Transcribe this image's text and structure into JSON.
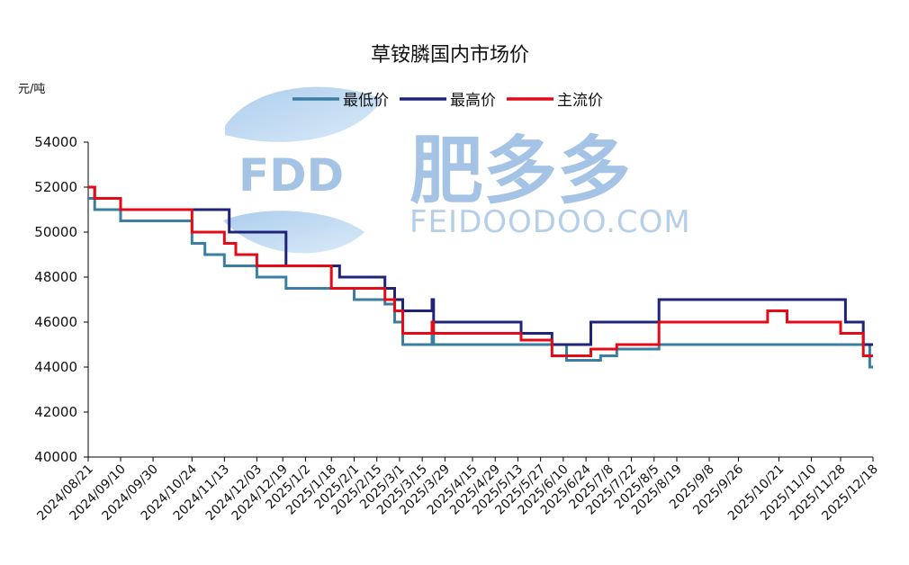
{
  "chart_data": {
    "type": "line",
    "title": "草铵膦国内市场价",
    "ylabel": "元/吨",
    "xlabel": "",
    "ylim": [
      40000,
      54000
    ],
    "yticks": [
      40000,
      42000,
      44000,
      46000,
      48000,
      50000,
      52000,
      54000
    ],
    "grid": false,
    "legend_position": "top",
    "x_dates": [
      "2024/08/21",
      "2024/09/10",
      "2024/09/30",
      "2024/10/24",
      "2024/11/13",
      "2024/12/03",
      "2024/12/19",
      "2025/1/2",
      "2025/1/18",
      "2025/2/1",
      "2025/2/15",
      "2025/3/1",
      "2025/3/15",
      "2025/3/29",
      "2025/4/15",
      "2025/4/29",
      "2025/5/13",
      "2025/5/27",
      "2025/6/10",
      "2025/6/24",
      "2025/7/8",
      "2025/7/22",
      "2025/8/5",
      "2025/8/19",
      "2025/9/8",
      "2025/9/26",
      "2025/10/21",
      "2025/11/10",
      "2025/11/28",
      "2025/12/18"
    ],
    "series": [
      {
        "name": "最低价",
        "color": "#3a7ea1",
        "points": [
          [
            "2024/08/21",
            51500
          ],
          [
            "2024/08/25",
            51000
          ],
          [
            "2024/09/10",
            50500
          ],
          [
            "2024/10/24",
            49500
          ],
          [
            "2024/11/01",
            49000
          ],
          [
            "2024/11/13",
            48500
          ],
          [
            "2024/12/03",
            48000
          ],
          [
            "2024/12/19",
            48000
          ],
          [
            "2024/12/21",
            47500
          ],
          [
            "2025/1/18",
            47500
          ],
          [
            "2025/2/1",
            47000
          ],
          [
            "2025/2/15",
            47000
          ],
          [
            "2025/2/20",
            46800
          ],
          [
            "2025/2/26",
            46000
          ],
          [
            "2025/3/3",
            45000
          ],
          [
            "2025/3/20",
            45000
          ],
          [
            "2025/3/21",
            45500
          ],
          [
            "2025/3/22",
            45000
          ],
          [
            "2025/6/12",
            44300
          ],
          [
            "2025/7/3",
            44500
          ],
          [
            "2025/7/13",
            44800
          ],
          [
            "2025/8/8",
            45000
          ],
          [
            "2025/12/12",
            45000
          ],
          [
            "2025/12/16",
            44000
          ],
          [
            "2025/12/18",
            44000
          ]
        ]
      },
      {
        "name": "最高价",
        "color": "#1f237a",
        "points": [
          [
            "2024/08/21",
            52000
          ],
          [
            "2024/08/25",
            51500
          ],
          [
            "2024/09/10",
            51000
          ],
          [
            "2024/11/13",
            51000
          ],
          [
            "2024/11/16",
            50000
          ],
          [
            "2024/12/19",
            50000
          ],
          [
            "2024/12/21",
            48500
          ],
          [
            "2025/1/18",
            48500
          ],
          [
            "2025/1/23",
            48000
          ],
          [
            "2025/2/15",
            48000
          ],
          [
            "2025/2/20",
            47500
          ],
          [
            "2025/2/26",
            47000
          ],
          [
            "2025/3/3",
            46500
          ],
          [
            "2025/3/20",
            46500
          ],
          [
            "2025/3/21",
            47000
          ],
          [
            "2025/3/22",
            46000
          ],
          [
            "2025/5/15",
            45500
          ],
          [
            "2025/6/3",
            45000
          ],
          [
            "2025/6/27",
            46000
          ],
          [
            "2025/8/8",
            47000
          ],
          [
            "2025/12/1",
            46000
          ],
          [
            "2025/12/12",
            45000
          ],
          [
            "2025/12/18",
            45000
          ]
        ]
      },
      {
        "name": "主流价",
        "color": "#e30b17",
        "points": [
          [
            "2024/08/21",
            52000
          ],
          [
            "2024/08/25",
            51500
          ],
          [
            "2024/09/10",
            51000
          ],
          [
            "2024/10/24",
            50000
          ],
          [
            "2024/11/13",
            49500
          ],
          [
            "2024/11/20",
            49000
          ],
          [
            "2024/12/03",
            48500
          ],
          [
            "2025/1/18",
            47500
          ],
          [
            "2025/2/20",
            47000
          ],
          [
            "2025/2/26",
            46500
          ],
          [
            "2025/3/3",
            45500
          ],
          [
            "2025/3/20",
            45500
          ],
          [
            "2025/3/21",
            46000
          ],
          [
            "2025/3/22",
            45500
          ],
          [
            "2025/5/15",
            45200
          ],
          [
            "2025/6/3",
            44500
          ],
          [
            "2025/6/27",
            44800
          ],
          [
            "2025/7/13",
            45000
          ],
          [
            "2025/8/8",
            46000
          ],
          [
            "2025/10/14",
            46500
          ],
          [
            "2025/10/26",
            46000
          ],
          [
            "2025/11/28",
            45500
          ],
          [
            "2025/12/12",
            44500
          ],
          [
            "2025/12/18",
            44500
          ]
        ]
      }
    ]
  },
  "watermark": {
    "logo_text": "FDD",
    "brand_cn": "肥多多",
    "brand_en": "FEIDOODOO.COM"
  }
}
